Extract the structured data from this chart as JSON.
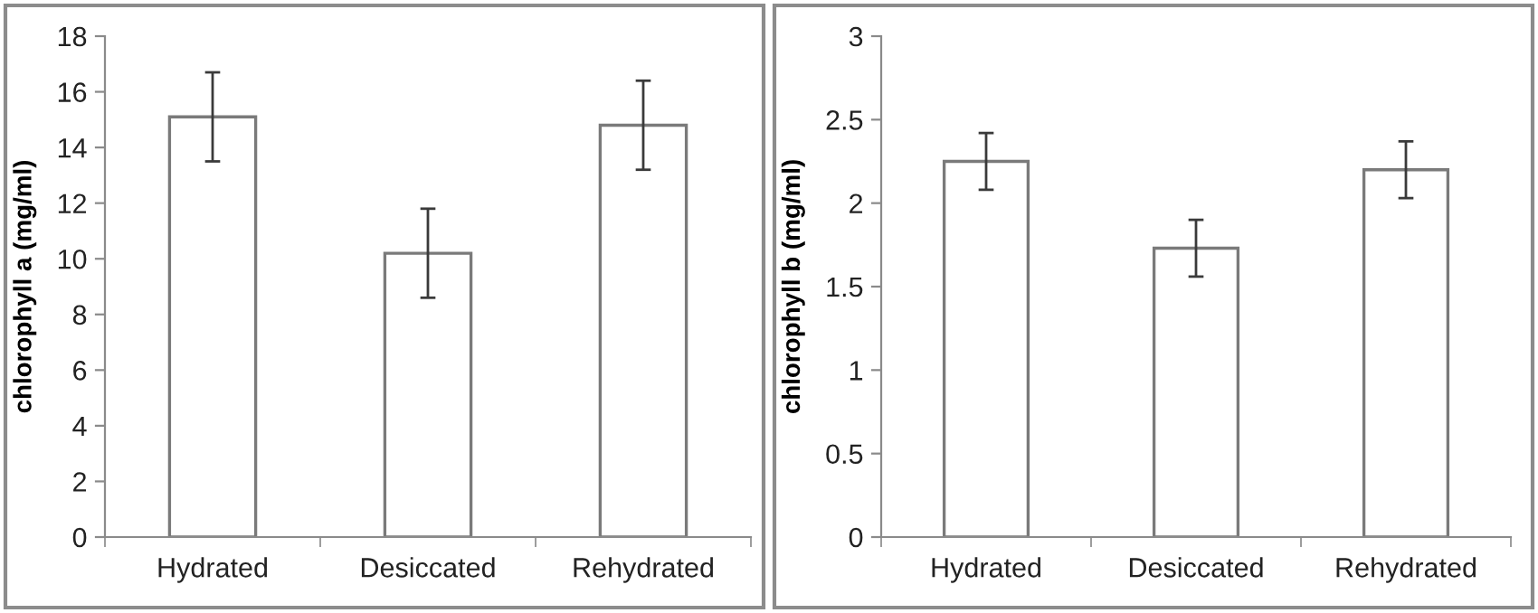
{
  "chart_data": [
    {
      "type": "bar",
      "ylabel": "chlorophyll a (mg/ml)",
      "categories": [
        "Hydrated",
        "Desiccated",
        "Rehydrated"
      ],
      "values": [
        15.1,
        10.2,
        14.8
      ],
      "errors": [
        1.6,
        1.6,
        1.6
      ],
      "color": "#ffffff",
      "ylim": [
        0,
        18
      ],
      "yticks": [
        0,
        2,
        4,
        6,
        8,
        10,
        12,
        14,
        16,
        18
      ],
      "grid": false,
      "legend": false
    },
    {
      "type": "bar",
      "ylabel": "chlorophyll b (mg/ml)",
      "categories": [
        "Hydrated",
        "Desiccated",
        "Rehydrated"
      ],
      "values": [
        2.25,
        1.73,
        2.2
      ],
      "errors": [
        0.17,
        0.17,
        0.17
      ],
      "color": "#ffffff",
      "ylim": [
        0,
        3
      ],
      "yticks": [
        0,
        0.5,
        1,
        1.5,
        2,
        2.5,
        3
      ],
      "grid": false,
      "legend": false
    }
  ]
}
